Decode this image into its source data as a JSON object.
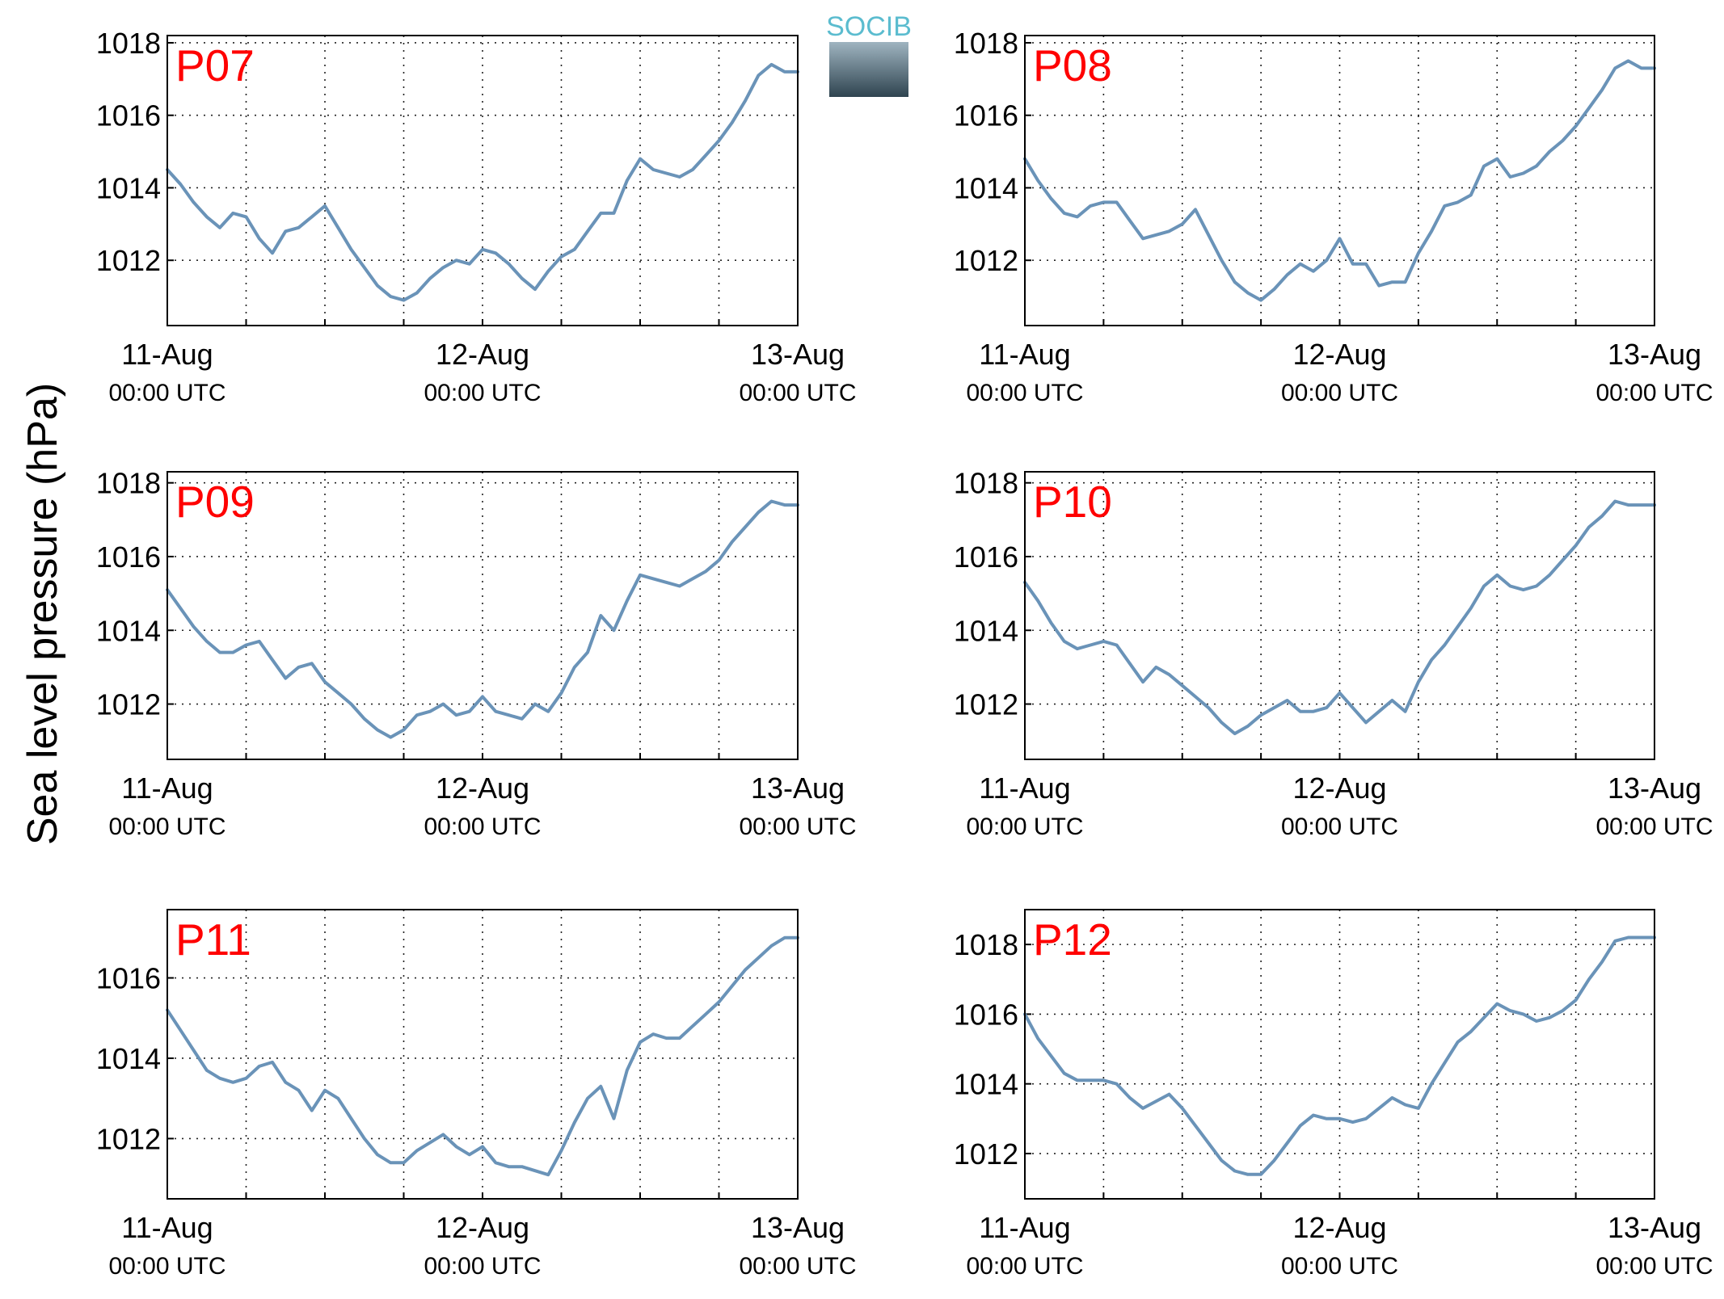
{
  "ylabel": "Sea level pressure (hPa)",
  "logo": "SOCIB",
  "chart_data": [
    {
      "type": "line",
      "title": "P07",
      "title_color": "#ff0000",
      "color": "#6a93b8",
      "grid": true,
      "x": [
        0,
        1,
        2,
        3,
        4,
        5,
        6,
        7,
        8,
        9,
        10,
        11,
        12,
        13,
        14,
        15,
        16,
        17,
        18,
        19,
        20,
        21,
        22,
        23,
        24,
        25,
        26,
        27,
        28,
        29,
        30,
        31,
        32,
        33,
        34,
        35,
        36,
        37,
        38,
        39,
        40,
        41,
        42,
        43,
        44,
        45,
        46,
        47,
        48
      ],
      "values": [
        1014.5,
        1014.1,
        1013.6,
        1013.2,
        1012.9,
        1013.3,
        1013.2,
        1012.6,
        1012.2,
        1012.8,
        1012.9,
        1013.2,
        1013.5,
        1012.9,
        1012.3,
        1011.8,
        1011.3,
        1011.0,
        1010.9,
        1011.1,
        1011.5,
        1011.8,
        1012.0,
        1011.9,
        1012.3,
        1012.2,
        1011.9,
        1011.5,
        1011.2,
        1011.7,
        1012.1,
        1012.3,
        1012.8,
        1013.3,
        1013.3,
        1014.2,
        1014.8,
        1014.5,
        1014.4,
        1014.3,
        1014.5,
        1014.9,
        1015.3,
        1015.8,
        1016.4,
        1017.1,
        1017.4,
        1017.2,
        1017.2
      ],
      "xlim": [
        0,
        48
      ],
      "xticks": [
        {
          "value": 0,
          "label": "11-Aug"
        },
        {
          "value": 24,
          "label": "12-Aug"
        },
        {
          "value": 48,
          "label": "13-Aug"
        }
      ],
      "xtick_sublabels": [
        "00:00 UTC",
        "00:00 UTC",
        "00:00 UTC"
      ],
      "xgrid": [
        6,
        12,
        18,
        30,
        36,
        42
      ],
      "ylim": [
        1010.2,
        1018.2
      ],
      "yticks": [
        1012,
        1014,
        1016,
        1018
      ]
    },
    {
      "type": "line",
      "title": "P08",
      "title_color": "#ff0000",
      "color": "#6a93b8",
      "grid": true,
      "x": [
        0,
        1,
        2,
        3,
        4,
        5,
        6,
        7,
        8,
        9,
        10,
        11,
        12,
        13,
        14,
        15,
        16,
        17,
        18,
        19,
        20,
        21,
        22,
        23,
        24,
        25,
        26,
        27,
        28,
        29,
        30,
        31,
        32,
        33,
        34,
        35,
        36,
        37,
        38,
        39,
        40,
        41,
        42,
        43,
        44,
        45,
        46,
        47,
        48
      ],
      "values": [
        1014.8,
        1014.2,
        1013.7,
        1013.3,
        1013.2,
        1013.5,
        1013.6,
        1013.6,
        1013.1,
        1012.6,
        1012.7,
        1012.8,
        1013.0,
        1013.4,
        1012.7,
        1012.0,
        1011.4,
        1011.1,
        1010.9,
        1011.2,
        1011.6,
        1011.9,
        1011.7,
        1012.0,
        1012.6,
        1011.9,
        1011.9,
        1011.3,
        1011.4,
        1011.4,
        1012.2,
        1012.8,
        1013.5,
        1013.6,
        1013.8,
        1014.6,
        1014.8,
        1014.3,
        1014.4,
        1014.6,
        1015.0,
        1015.3,
        1015.7,
        1016.2,
        1016.7,
        1017.3,
        1017.5,
        1017.3,
        1017.3
      ],
      "xlim": [
        0,
        48
      ],
      "xticks": [
        {
          "value": 0,
          "label": "11-Aug"
        },
        {
          "value": 24,
          "label": "12-Aug"
        },
        {
          "value": 48,
          "label": "13-Aug"
        }
      ],
      "xtick_sublabels": [
        "00:00 UTC",
        "00:00 UTC",
        "00:00 UTC"
      ],
      "xgrid": [
        6,
        12,
        18,
        30,
        36,
        42
      ],
      "ylim": [
        1010.2,
        1018.2
      ],
      "yticks": [
        1012,
        1014,
        1016,
        1018
      ]
    },
    {
      "type": "line",
      "title": "P09",
      "title_color": "#ff0000",
      "color": "#6a93b8",
      "grid": true,
      "x": [
        0,
        1,
        2,
        3,
        4,
        5,
        6,
        7,
        8,
        9,
        10,
        11,
        12,
        13,
        14,
        15,
        16,
        17,
        18,
        19,
        20,
        21,
        22,
        23,
        24,
        25,
        26,
        27,
        28,
        29,
        30,
        31,
        32,
        33,
        34,
        35,
        36,
        37,
        38,
        39,
        40,
        41,
        42,
        43,
        44,
        45,
        46,
        47,
        48
      ],
      "values": [
        1015.1,
        1014.6,
        1014.1,
        1013.7,
        1013.4,
        1013.4,
        1013.6,
        1013.7,
        1013.2,
        1012.7,
        1013.0,
        1013.1,
        1012.6,
        1012.3,
        1012.0,
        1011.6,
        1011.3,
        1011.1,
        1011.3,
        1011.7,
        1011.8,
        1012.0,
        1011.7,
        1011.8,
        1012.2,
        1011.8,
        1011.7,
        1011.6,
        1012.0,
        1011.8,
        1012.3,
        1013.0,
        1013.4,
        1014.4,
        1014.0,
        1014.8,
        1015.5,
        1015.4,
        1015.3,
        1015.2,
        1015.4,
        1015.6,
        1015.9,
        1016.4,
        1016.8,
        1017.2,
        1017.5,
        1017.4,
        1017.4
      ],
      "xlim": [
        0,
        48
      ],
      "xticks": [
        {
          "value": 0,
          "label": "11-Aug"
        },
        {
          "value": 24,
          "label": "12-Aug"
        },
        {
          "value": 48,
          "label": "13-Aug"
        }
      ],
      "xtick_sublabels": [
        "00:00 UTC",
        "00:00 UTC",
        "00:00 UTC"
      ],
      "xgrid": [
        6,
        12,
        18,
        30,
        36,
        42
      ],
      "ylim": [
        1010.5,
        1018.3
      ],
      "yticks": [
        1012,
        1014,
        1016,
        1018
      ]
    },
    {
      "type": "line",
      "title": "P10",
      "title_color": "#ff0000",
      "color": "#6a93b8",
      "grid": true,
      "x": [
        0,
        1,
        2,
        3,
        4,
        5,
        6,
        7,
        8,
        9,
        10,
        11,
        12,
        13,
        14,
        15,
        16,
        17,
        18,
        19,
        20,
        21,
        22,
        23,
        24,
        25,
        26,
        27,
        28,
        29,
        30,
        31,
        32,
        33,
        34,
        35,
        36,
        37,
        38,
        39,
        40,
        41,
        42,
        43,
        44,
        45,
        46,
        47,
        48
      ],
      "values": [
        1015.3,
        1014.8,
        1014.2,
        1013.7,
        1013.5,
        1013.6,
        1013.7,
        1013.6,
        1013.1,
        1012.6,
        1013.0,
        1012.8,
        1012.5,
        1012.2,
        1011.9,
        1011.5,
        1011.2,
        1011.4,
        1011.7,
        1011.9,
        1012.1,
        1011.8,
        1011.8,
        1011.9,
        1012.3,
        1011.9,
        1011.5,
        1011.8,
        1012.1,
        1011.8,
        1012.6,
        1013.2,
        1013.6,
        1014.1,
        1014.6,
        1015.2,
        1015.5,
        1015.2,
        1015.1,
        1015.2,
        1015.5,
        1015.9,
        1016.3,
        1016.8,
        1017.1,
        1017.5,
        1017.4,
        1017.4,
        1017.4
      ],
      "xlim": [
        0,
        48
      ],
      "xticks": [
        {
          "value": 0,
          "label": "11-Aug"
        },
        {
          "value": 24,
          "label": "12-Aug"
        },
        {
          "value": 48,
          "label": "13-Aug"
        }
      ],
      "xtick_sublabels": [
        "00:00 UTC",
        "00:00 UTC",
        "00:00 UTC"
      ],
      "xgrid": [
        6,
        12,
        18,
        30,
        36,
        42
      ],
      "ylim": [
        1010.5,
        1018.3
      ],
      "yticks": [
        1012,
        1014,
        1016,
        1018
      ]
    },
    {
      "type": "line",
      "title": "P11",
      "title_color": "#ff0000",
      "color": "#6a93b8",
      "grid": true,
      "x": [
        0,
        1,
        2,
        3,
        4,
        5,
        6,
        7,
        8,
        9,
        10,
        11,
        12,
        13,
        14,
        15,
        16,
        17,
        18,
        19,
        20,
        21,
        22,
        23,
        24,
        25,
        26,
        27,
        28,
        29,
        30,
        31,
        32,
        33,
        34,
        35,
        36,
        37,
        38,
        39,
        40,
        41,
        42,
        43,
        44,
        45,
        46,
        47,
        48
      ],
      "values": [
        1015.2,
        1014.7,
        1014.2,
        1013.7,
        1013.5,
        1013.4,
        1013.5,
        1013.8,
        1013.9,
        1013.4,
        1013.2,
        1012.7,
        1013.2,
        1013.0,
        1012.5,
        1012.0,
        1011.6,
        1011.4,
        1011.4,
        1011.7,
        1011.9,
        1012.1,
        1011.8,
        1011.6,
        1011.8,
        1011.4,
        1011.3,
        1011.3,
        1011.2,
        1011.1,
        1011.7,
        1012.4,
        1013.0,
        1013.3,
        1012.5,
        1013.7,
        1014.4,
        1014.6,
        1014.5,
        1014.5,
        1014.8,
        1015.1,
        1015.4,
        1015.8,
        1016.2,
        1016.5,
        1016.8,
        1017.0,
        1017.0
      ],
      "xlim": [
        0,
        48
      ],
      "xticks": [
        {
          "value": 0,
          "label": "11-Aug"
        },
        {
          "value": 24,
          "label": "12-Aug"
        },
        {
          "value": 48,
          "label": "13-Aug"
        }
      ],
      "xtick_sublabels": [
        "00:00 UTC",
        "00:00 UTC",
        "00:00 UTC"
      ],
      "xgrid": [
        6,
        12,
        18,
        30,
        36,
        42
      ],
      "ylim": [
        1010.5,
        1017.7
      ],
      "yticks": [
        1012,
        1014,
        1016
      ]
    },
    {
      "type": "line",
      "title": "P12",
      "title_color": "#ff0000",
      "color": "#6a93b8",
      "grid": true,
      "x": [
        0,
        1,
        2,
        3,
        4,
        5,
        6,
        7,
        8,
        9,
        10,
        11,
        12,
        13,
        14,
        15,
        16,
        17,
        18,
        19,
        20,
        21,
        22,
        23,
        24,
        25,
        26,
        27,
        28,
        29,
        30,
        31,
        32,
        33,
        34,
        35,
        36,
        37,
        38,
        39,
        40,
        41,
        42,
        43,
        44,
        45,
        46,
        47,
        48
      ],
      "values": [
        1016.0,
        1015.3,
        1014.8,
        1014.3,
        1014.1,
        1014.1,
        1014.1,
        1014.0,
        1013.6,
        1013.3,
        1013.5,
        1013.7,
        1013.3,
        1012.8,
        1012.3,
        1011.8,
        1011.5,
        1011.4,
        1011.4,
        1011.8,
        1012.3,
        1012.8,
        1013.1,
        1013.0,
        1013.0,
        1012.9,
        1013.0,
        1013.3,
        1013.6,
        1013.4,
        1013.3,
        1014.0,
        1014.6,
        1015.2,
        1015.5,
        1015.9,
        1016.3,
        1016.1,
        1016.0,
        1015.8,
        1015.9,
        1016.1,
        1016.4,
        1017.0,
        1017.5,
        1018.1,
        1018.2,
        1018.2,
        1018.2
      ],
      "xlim": [
        0,
        48
      ],
      "xticks": [
        {
          "value": 0,
          "label": "11-Aug"
        },
        {
          "value": 24,
          "label": "12-Aug"
        },
        {
          "value": 48,
          "label": "13-Aug"
        }
      ],
      "xtick_sublabels": [
        "00:00 UTC",
        "00:00 UTC",
        "00:00 UTC"
      ],
      "xgrid": [
        6,
        12,
        18,
        30,
        36,
        42
      ],
      "ylim": [
        1010.7,
        1019.0
      ],
      "yticks": [
        1012,
        1014,
        1016,
        1018
      ]
    }
  ]
}
